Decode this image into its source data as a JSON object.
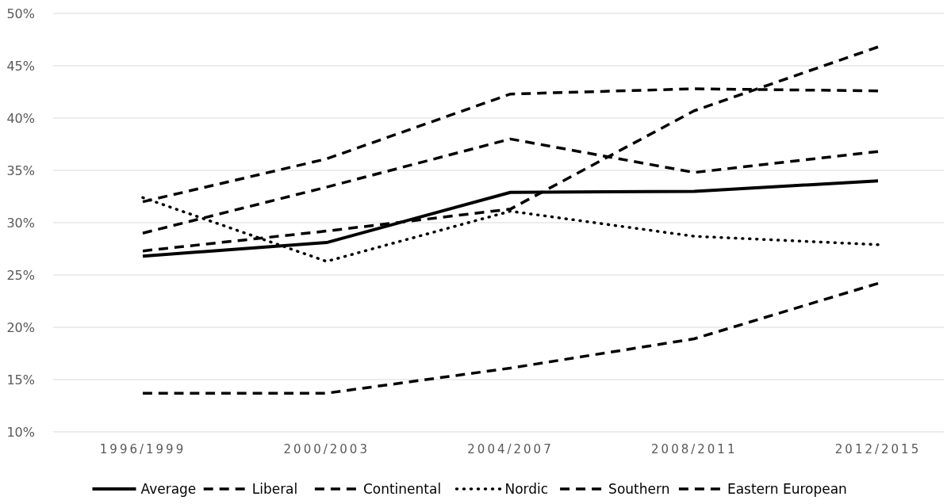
{
  "chart_data": {
    "type": "line",
    "categories": [
      "1996/1999",
      "2000/2003",
      "2004/2007",
      "2008/2011",
      "2012/2015"
    ],
    "series": [
      {
        "name": "Average",
        "color": "#000000",
        "line_style": "solid",
        "values": [
          26.8,
          28.1,
          32.9,
          33.0,
          34.0
        ]
      },
      {
        "name": "Liberal",
        "color": "#000000",
        "line_style": "dashed",
        "values": [
          29.0,
          33.4,
          38.0,
          34.8,
          36.8
        ]
      },
      {
        "name": "Continental",
        "color": "#000000",
        "line_style": "dashed",
        "values": [
          32.0,
          36.1,
          42.3,
          42.8,
          42.6
        ]
      },
      {
        "name": "Nordic",
        "color": "#000000",
        "line_style": "dotted",
        "values": [
          32.4,
          26.3,
          31.1,
          28.7,
          27.9
        ]
      },
      {
        "name": "Southern",
        "color": "#000000",
        "line_style": "dashed",
        "values": [
          27.3,
          29.2,
          31.3,
          40.7,
          46.8
        ]
      },
      {
        "name": "Eastern European",
        "color": "#000000",
        "line_style": "dashed",
        "values": [
          13.7,
          13.7,
          16.1,
          18.9,
          24.2
        ]
      }
    ],
    "ylim": [
      10,
      50
    ],
    "yticks": [
      {
        "value": 10,
        "label": "10%"
      },
      {
        "value": 15,
        "label": "15%"
      },
      {
        "value": 20,
        "label": "20%"
      },
      {
        "value": 25,
        "label": "25%"
      },
      {
        "value": 30,
        "label": "30%"
      },
      {
        "value": 35,
        "label": "35%"
      },
      {
        "value": 40,
        "label": "40%"
      },
      {
        "value": 45,
        "label": "45%"
      },
      {
        "value": 50,
        "label": "50%"
      }
    ],
    "grid": "y",
    "legend": "bottom",
    "marker": "none"
  }
}
